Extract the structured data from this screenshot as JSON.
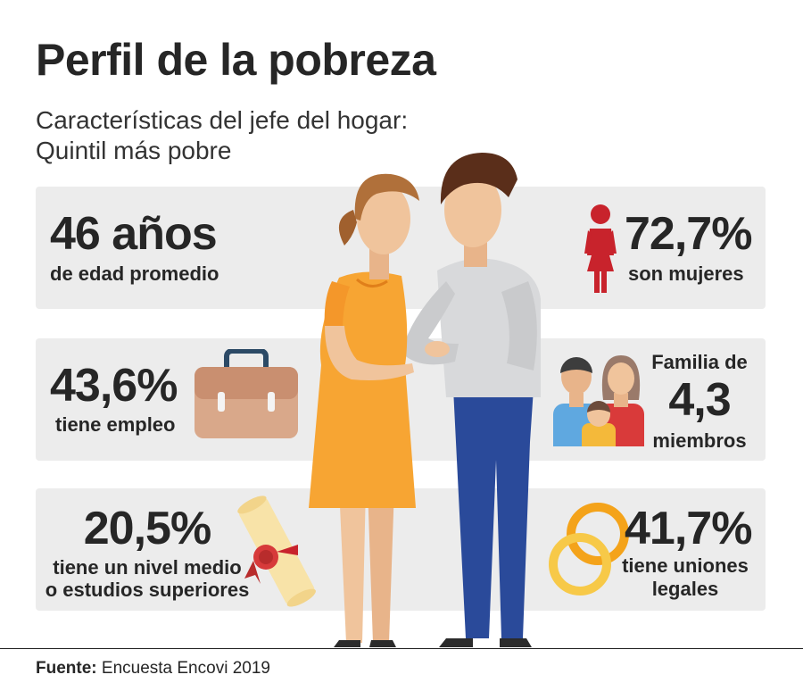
{
  "header": {
    "title": "Perfil de la pobreza",
    "subtitle_line1": "Características del jefe del hogar:",
    "subtitle_line2": "Quintil más pobre"
  },
  "stats": {
    "age": {
      "value": "46 años",
      "label": "de edad promedio"
    },
    "women": {
      "value": "72,7%",
      "label": "son mujeres"
    },
    "employment": {
      "value": "43,6%",
      "label": "tiene empleo"
    },
    "family": {
      "label_top": "Familia de",
      "value": "4,3",
      "label_bottom": "miembros"
    },
    "education": {
      "value": "20,5%",
      "label_line1": "tiene un nivel medio",
      "label_line2": "o estudios superiores"
    },
    "unions": {
      "value": "41,7%",
      "label_line1": "tiene uniones",
      "label_line2": "legales"
    }
  },
  "footer": {
    "source_label": "Fuente:",
    "source_text": "Encuesta Encovi 2019"
  },
  "icons": [
    "woman-icon",
    "briefcase-icon",
    "family-icon",
    "diploma-icon",
    "rings-icon",
    "couple-illustration"
  ],
  "colors": {
    "card_background": "#ececec",
    "text": "#262626",
    "woman_icon": "#c8232c",
    "ring_gold": "#f4a31a",
    "dress": "#f7a533",
    "jeans": "#2a4a9a"
  }
}
